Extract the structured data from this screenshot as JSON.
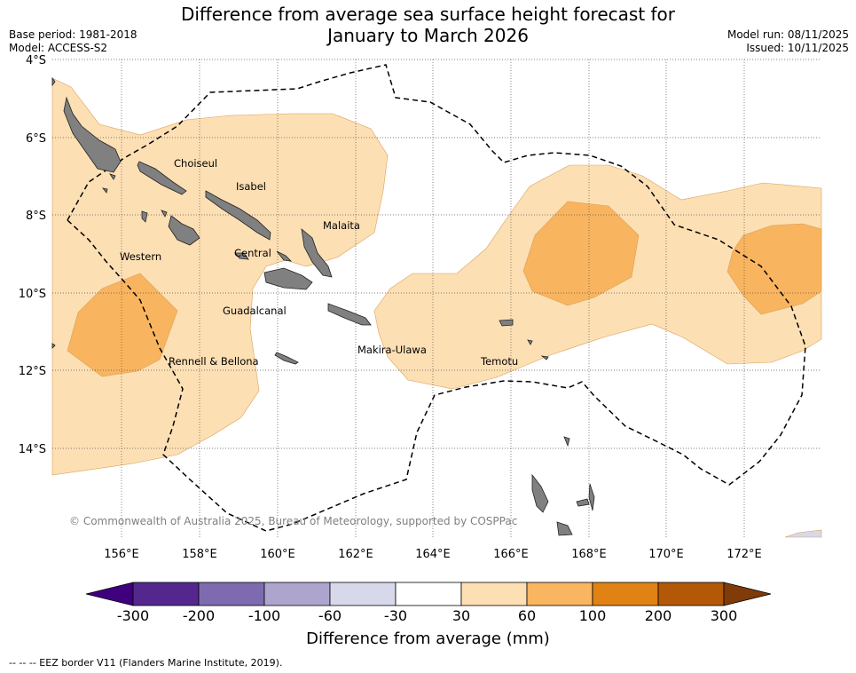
{
  "title": {
    "line1": "Difference from average sea surface height forecast for",
    "line2": "January to March 2026"
  },
  "meta": {
    "base_period": "Base period: 1981-2018",
    "model": "Model: ACCESS-S2",
    "model_run": "Model run: 08/11/2025",
    "issued": "Issued: 10/11/2025"
  },
  "map": {
    "lat_ticks": [
      "4°S",
      "6°S",
      "8°S",
      "10°S",
      "12°S",
      "14°S"
    ],
    "lon_ticks": [
      "156°E",
      "158°E",
      "160°E",
      "162°E",
      "164°E",
      "166°E",
      "168°E",
      "170°E",
      "172°E"
    ],
    "places": {
      "choiseul": "Choiseul",
      "isabel": "Isabel",
      "malaita": "Malaita",
      "western": "Western",
      "central": "Central",
      "guadalcanal": "Guadalcanal",
      "makira": "Makira-Ulawa",
      "rennell": "Rennell & Bellona",
      "temotu": "Temotu"
    },
    "copyright": "© Commonwealth of Australia 2025, Bureau of Meteorology, supported by COSPPac",
    "colors": {
      "land": "#808080",
      "band_30_60": "#fddfb4",
      "band_60_100": "#f8b45f",
      "band_neg_60_30": "#d8d8eb"
    }
  },
  "colorbar": {
    "labels": [
      "-300",
      "-200",
      "-100",
      "-60",
      "-30",
      "30",
      "60",
      "100",
      "200",
      "300"
    ],
    "colors": [
      "#3f007d",
      "#54278f",
      "#7e6baf",
      "#aea5cf",
      "#d8d8eb",
      "#ffffff",
      "#fddfb4",
      "#f9b560",
      "#e08214",
      "#b35806",
      "#7f3b08"
    ],
    "title": "Difference from average (mm)"
  },
  "legend_note": "--  --  -- EEZ border V11 (Flanders Marine Institute, 2019)."
}
